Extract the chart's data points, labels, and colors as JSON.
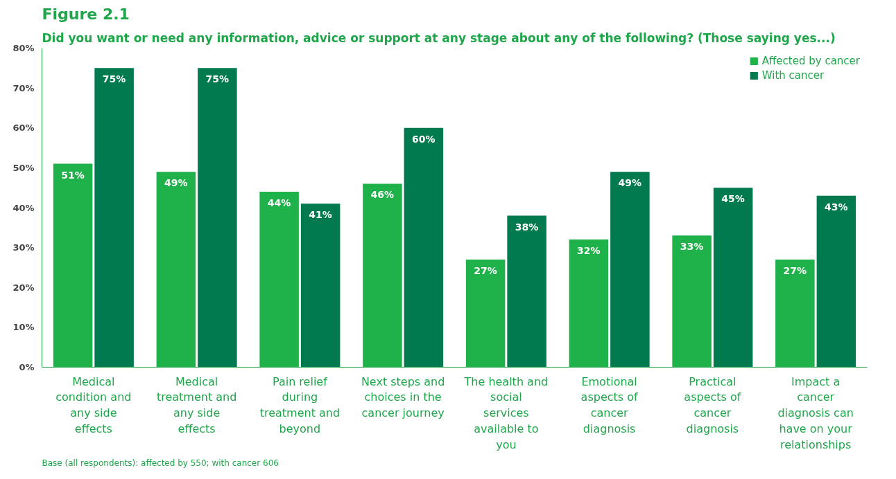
{
  "chart_data": {
    "type": "bar",
    "title": "Figure 2.1",
    "subtitle": "Did you want or need any information, advice or support at any stage about any of the following? (Those saying yes...)",
    "categories": [
      "Medical condition and any side effects",
      "Medical treatment and any side effects",
      "Pain relief during treatment and beyond",
      "Next steps and choices in the cancer journey",
      "The health and social services available to you",
      "Emotional aspects of cancer diagnosis",
      "Practical aspects of cancer diagnosis",
      "Impact a cancer diagnosis can have on your relationships"
    ],
    "series": [
      {
        "name": "Affected by cancer",
        "color": "#1fb24a",
        "values": [
          51,
          49,
          44,
          46,
          27,
          32,
          33,
          27
        ],
        "value_labels": [
          "51%",
          "49%",
          "44%",
          "46%",
          "27%",
          "32%",
          "33%",
          "27%"
        ]
      },
      {
        "name": "With cancer",
        "color": "#007a4e",
        "values": [
          75,
          75,
          41,
          60,
          38,
          49,
          45,
          43
        ],
        "value_labels": [
          "75%",
          "75%",
          "41%",
          "60%",
          "38%",
          "49%",
          "45%",
          "43%"
        ]
      }
    ],
    "ylim": [
      0,
      80
    ],
    "yticks": [
      {
        "value": 0,
        "label": "0%"
      },
      {
        "value": 10,
        "label": "10%"
      },
      {
        "value": 20,
        "label": "20%"
      },
      {
        "value": 30,
        "label": "30%"
      },
      {
        "value": 40,
        "label": "40%"
      },
      {
        "value": 50,
        "label": "50%"
      },
      {
        "value": 60,
        "label": "60%"
      },
      {
        "value": 70,
        "label": "70%"
      },
      {
        "value": 80,
        "label": "80%"
      }
    ],
    "grid": false,
    "legend": "top right",
    "annotations": [
      "Base (all respondents): affected by 550; with cancer 606"
    ]
  }
}
